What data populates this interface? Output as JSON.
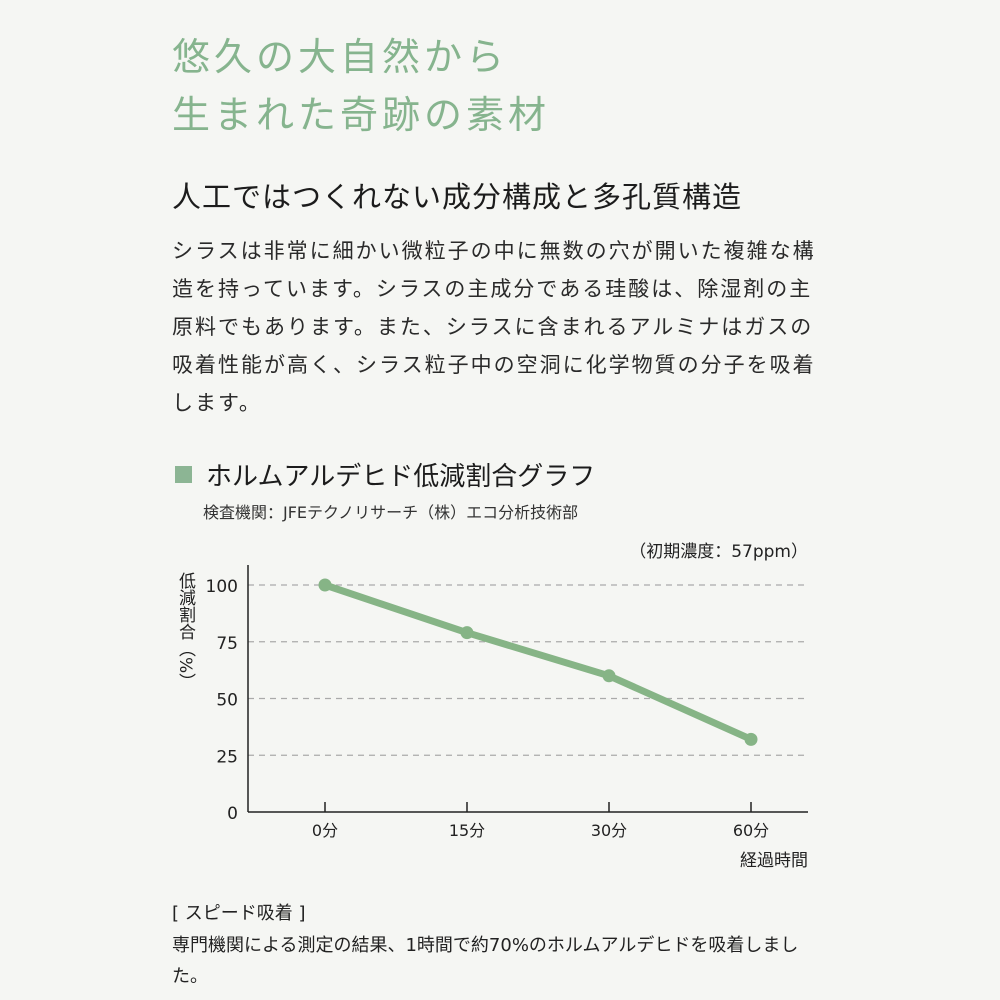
{
  "hero": {
    "line1": "悠久の大自然から",
    "line2": "生まれた奇跡の素材"
  },
  "subhead": "人工ではつくれない成分構成と多孔質構造",
  "body": "シラスは非常に細かい微粒子の中に無数の穴が開いた複雑な構造を持っています。シラスの主成分である珪酸は、除湿剤の主原料でもあります。また、シラスに含まれるアルミナはガスの吸着性能が高く、シラス粒子中の空洞に化学物質の分子を吸着します。",
  "section": {
    "title": "ホルムアルデヒド低減割合グラフ",
    "agency": "検査機関：JFEテクノリサーチ（株）エコ分析技術部"
  },
  "chart_data": {
    "type": "line",
    "annotation": "（初期濃度：57ppm）",
    "ylabel": "低減割合（%）",
    "xlabel": "経過時間",
    "categories": [
      "0分",
      "15分",
      "30分",
      "60分"
    ],
    "values": [
      100,
      79,
      60,
      32
    ],
    "yticks": [
      "0",
      "25",
      "50",
      "75",
      "100"
    ],
    "ylim": [
      0,
      100
    ],
    "grid": "horizontal dashed",
    "line_color": "#86b486"
  },
  "note": {
    "heading": "[ スピード吸着 ]",
    "text": "専門機関による測定の結果、1時間で約70%のホルムアルデヒドを吸着しました。"
  }
}
